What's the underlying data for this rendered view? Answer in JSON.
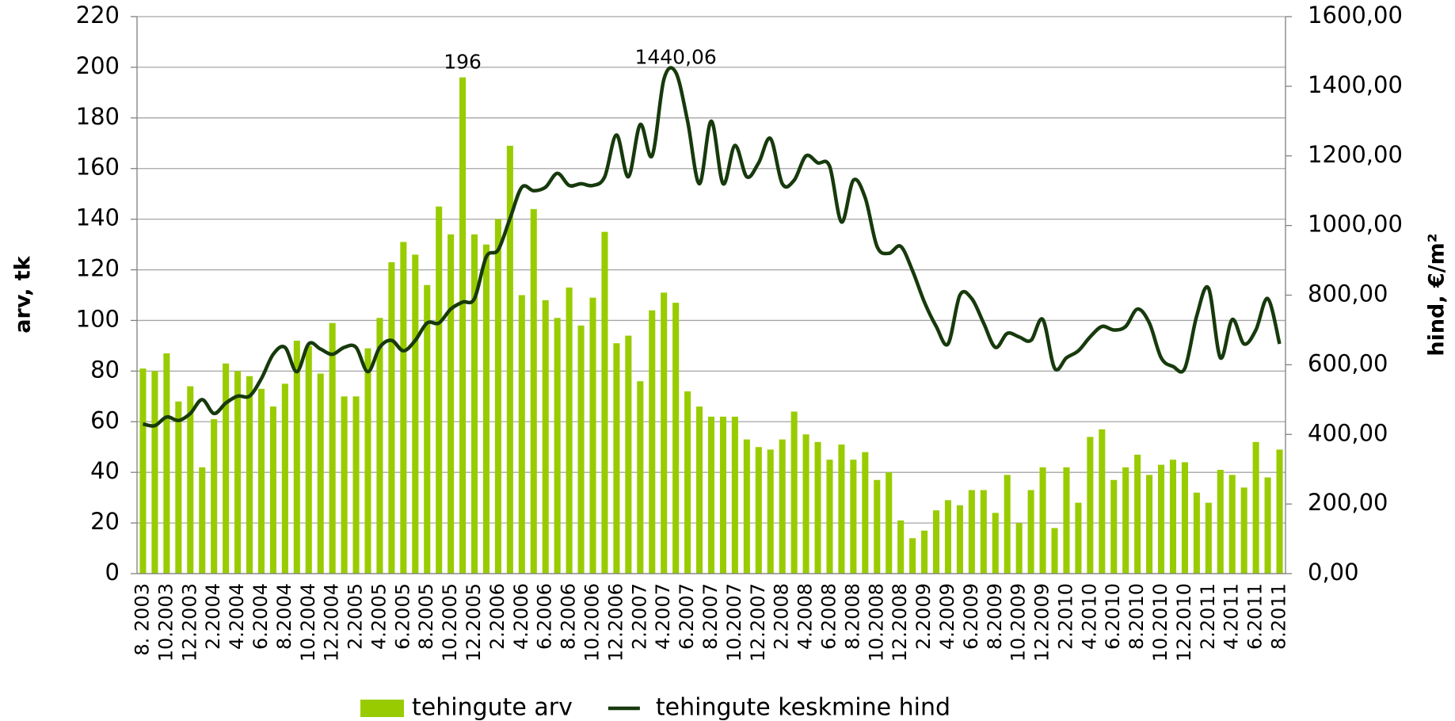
{
  "chart_data": {
    "type": "bar-line",
    "ylabel": "arv, tk",
    "y2label": "hind, €/m²",
    "categories": [
      "8. 2003",
      null,
      "10.2003",
      null,
      "12.2003",
      null,
      "2.2004",
      null,
      "4.2004",
      null,
      "6.2004",
      null,
      "8.2004",
      null,
      "10.2004",
      null,
      "12.2004",
      null,
      "2.2005",
      null,
      "4.2005",
      null,
      "6.2005",
      null,
      "8.2005",
      null,
      "10.2005",
      null,
      "12.2005",
      null,
      "2.2006",
      null,
      "4.2006",
      null,
      "6.2006",
      null,
      "8.2006",
      null,
      "10.2006",
      null,
      "12.2006",
      null,
      "2.2007",
      null,
      "4.2007",
      null,
      "6.2007",
      null,
      "8.2007",
      null,
      "10.2007",
      null,
      "12.2007",
      null,
      "2.2008",
      null,
      "4.2008",
      null,
      "6.2008",
      null,
      "8.2008",
      null,
      "10.2008",
      null,
      "12.2008",
      null,
      "2.2009",
      null,
      "4.2009",
      null,
      "6.2009",
      null,
      "8.2009",
      null,
      "10.2009",
      null,
      "12.2009",
      null,
      "2.2010",
      null,
      "4.2010",
      null,
      "6.2010",
      null,
      "8.2010",
      null,
      "10.2010",
      null,
      "12.2010",
      null,
      "2.2011",
      null,
      "4.2011",
      null,
      "6.2011",
      null,
      "8.2011"
    ],
    "series": [
      {
        "name": "tehingute arv",
        "kind": "bar",
        "color": "#99cc00",
        "values": [
          81,
          80,
          87,
          68,
          74,
          42,
          61,
          83,
          80,
          78,
          73,
          66,
          75,
          92,
          90,
          79,
          99,
          70,
          70,
          89,
          101,
          123,
          131,
          126,
          114,
          145,
          134,
          196,
          134,
          130,
          140,
          169,
          110,
          144,
          108,
          101,
          113,
          98,
          109,
          135,
          91,
          94,
          76,
          104,
          111,
          107,
          72,
          66,
          62,
          62,
          62,
          53,
          50,
          49,
          53,
          64,
          55,
          52,
          45,
          51,
          45,
          48,
          37,
          40,
          21,
          14,
          17,
          25,
          29,
          27,
          33,
          33,
          24,
          39,
          20,
          33,
          42,
          18,
          42,
          28,
          54,
          57,
          37,
          42,
          47,
          39,
          43,
          45,
          44,
          32,
          28,
          41,
          39,
          34,
          52,
          38,
          49
        ],
        "value_labels": [
          null,
          null,
          null,
          null,
          null,
          null,
          null,
          null,
          null,
          null,
          null,
          null,
          null,
          null,
          null,
          null,
          null,
          null,
          null,
          null,
          null,
          null,
          null,
          null,
          null,
          null,
          null,
          "196",
          null,
          null,
          null,
          null,
          null,
          null,
          null,
          null,
          null,
          null,
          null,
          null,
          null,
          null,
          null,
          null,
          null,
          null,
          null,
          null,
          null,
          null,
          null,
          null,
          null,
          null,
          null,
          null,
          null,
          null,
          null,
          null,
          null,
          null,
          null,
          null,
          null,
          null,
          null,
          null,
          null,
          null,
          null,
          null,
          null,
          null,
          null,
          null,
          null,
          null,
          null,
          null,
          null,
          null,
          null,
          null,
          null,
          null,
          null,
          null,
          null,
          null,
          null,
          null,
          null,
          null,
          null,
          null,
          null
        ]
      },
      {
        "name": "tehingute keskmine hind",
        "kind": "line",
        "axis": "y2",
        "color": "#173a0c",
        "values": [
          430,
          425,
          450,
          440,
          460,
          500,
          460,
          490,
          510,
          510,
          560,
          630,
          650,
          580,
          660,
          645,
          630,
          650,
          650,
          580,
          650,
          670,
          640,
          670,
          720,
          720,
          760,
          780,
          790,
          910,
          930,
          1020,
          1110,
          1100,
          1110,
          1150,
          1115,
          1120,
          1115,
          1140,
          1260,
          1140,
          1290,
          1200,
          1420,
          1440.06,
          1300,
          1120,
          1300,
          1120,
          1230,
          1140,
          1180,
          1250,
          1120,
          1130,
          1200,
          1180,
          1170,
          1010,
          1130,
          1080,
          940,
          920,
          940,
          870,
          780,
          710,
          660,
          800,
          790,
          720,
          650,
          690,
          680,
          670,
          730,
          590,
          620,
          640,
          680,
          710,
          700,
          710,
          760,
          720,
          620,
          595,
          590,
          740,
          820,
          620,
          730,
          660,
          700,
          790,
          660
        ],
        "value_labels": [
          null,
          null,
          null,
          null,
          null,
          null,
          null,
          null,
          null,
          null,
          null,
          null,
          null,
          null,
          null,
          null,
          null,
          null,
          null,
          null,
          null,
          null,
          null,
          null,
          null,
          null,
          null,
          null,
          null,
          null,
          null,
          null,
          null,
          null,
          null,
          null,
          null,
          null,
          null,
          null,
          null,
          null,
          null,
          null,
          null,
          "1440,06",
          null,
          null,
          null,
          null,
          null,
          null,
          null,
          null,
          null,
          null,
          null,
          null,
          null,
          null,
          null,
          null,
          null,
          null,
          null,
          null,
          null,
          null,
          null,
          null,
          null,
          null,
          null,
          null,
          null,
          null,
          null,
          null,
          null,
          null,
          null,
          null,
          null,
          null,
          null,
          null,
          null,
          null,
          null,
          null,
          null,
          null,
          null,
          null,
          null,
          null,
          null
        ]
      }
    ],
    "ylim": [
      0,
      220
    ],
    "yticks": [
      0,
      20,
      40,
      60,
      80,
      100,
      120,
      140,
      160,
      180,
      200,
      220
    ],
    "y2lim": [
      0,
      1600
    ],
    "y2ticks": [
      {
        "value": 0,
        "label": "0,00"
      },
      {
        "value": 200,
        "label": "200,00"
      },
      {
        "value": 400,
        "label": "400,00"
      },
      {
        "value": 600,
        "label": "600,00"
      },
      {
        "value": 800,
        "label": "800,00"
      },
      {
        "value": 1000,
        "label": "1000,00"
      },
      {
        "value": 1200,
        "label": "1200,00"
      },
      {
        "value": 1400,
        "label": "1400,00"
      },
      {
        "value": 1600,
        "label": "1600,00"
      }
    ],
    "grid": true,
    "legend": "bottom"
  }
}
